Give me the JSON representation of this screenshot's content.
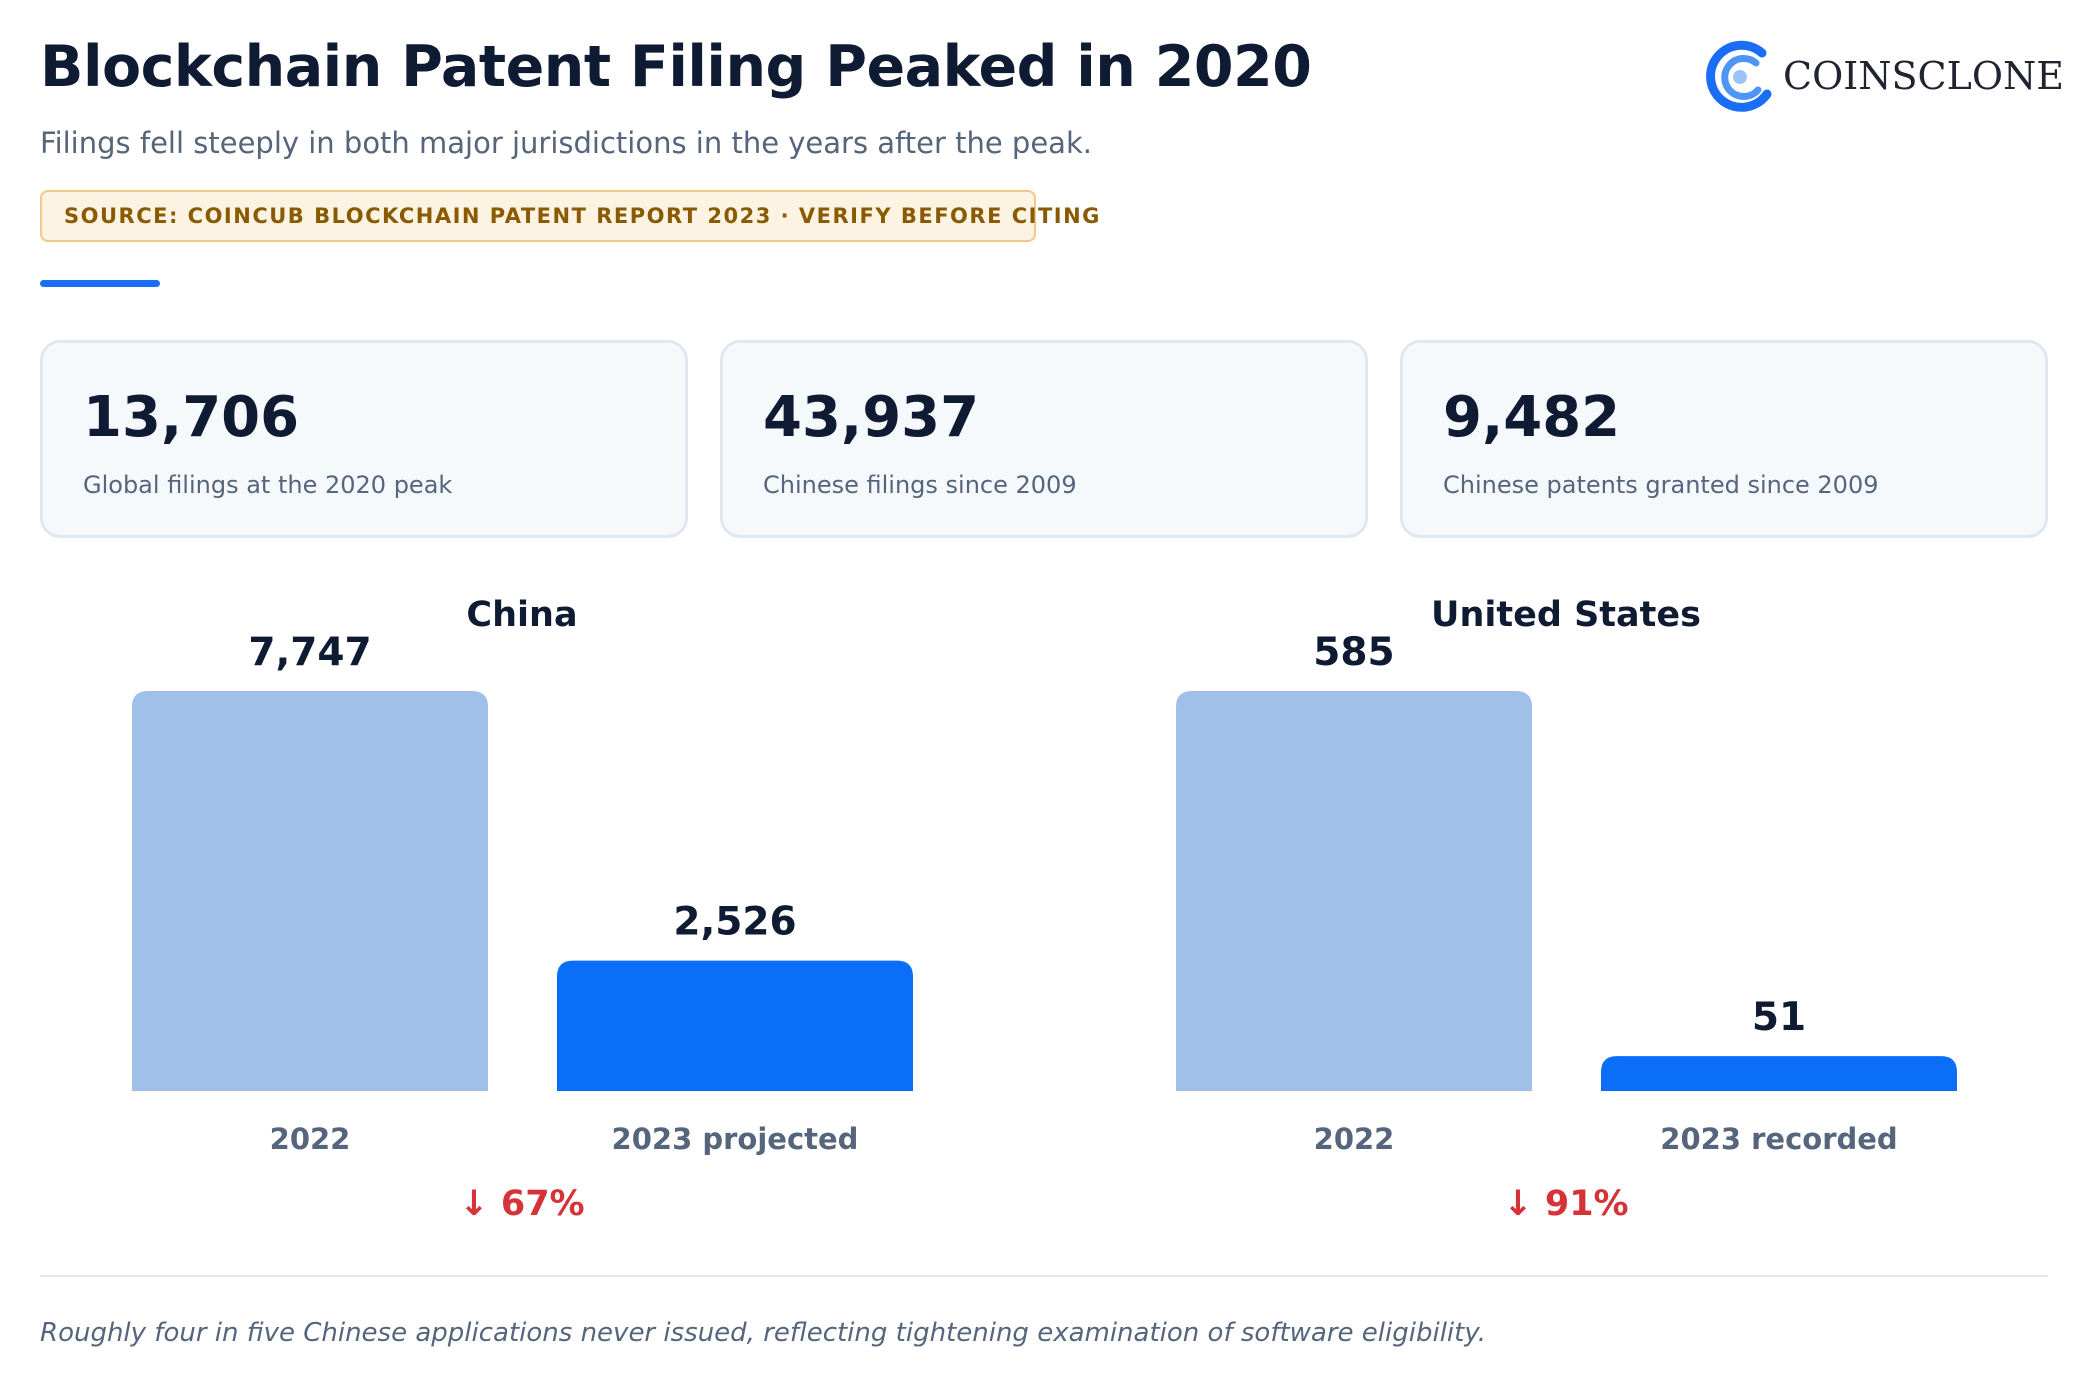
{
  "header": {
    "title": "Blockchain Patent Filing Peaked in 2020",
    "subtitle": "Filings fell steeply in both major jurisdictions in the years after the peak.",
    "source": "SOURCE: COINCUB BLOCKCHAIN PATENT REPORT 2023 · VERIFY BEFORE CITING"
  },
  "logo": {
    "text": "COINSCLONE",
    "color": "#1a6ef5",
    "icon": "coinsclone-logo-icon"
  },
  "stats": [
    {
      "value": "13,706",
      "label": "Global filings at the 2020 peak"
    },
    {
      "value": "43,937",
      "label": "Chinese filings since 2009"
    },
    {
      "value": "9,482",
      "label": "Chinese patents granted since 2009"
    }
  ],
  "chart_data": [
    {
      "type": "bar",
      "title": "China",
      "categories": [
        "2022",
        "2023 projected"
      ],
      "values": [
        7747,
        2526
      ],
      "value_labels": [
        "7,747",
        "2,526"
      ],
      "colors": [
        "#a0bfe9",
        "#0a6ef8"
      ],
      "change": "↓ 67%",
      "change_color": "#d63339",
      "ylim": [
        0,
        7747
      ],
      "grid": false
    },
    {
      "type": "bar",
      "title": "United States",
      "categories": [
        "2022",
        "2023 recorded"
      ],
      "values": [
        585,
        51
      ],
      "value_labels": [
        "585",
        "51"
      ],
      "colors": [
        "#a0bfe9",
        "#0a6ef8"
      ],
      "change": "↓ 91%",
      "change_color": "#d63339",
      "ylim": [
        0,
        585
      ],
      "grid": false
    }
  ],
  "footnote": "Roughly four in five Chinese applications never issued, reflecting tightening examination of software eligibility."
}
